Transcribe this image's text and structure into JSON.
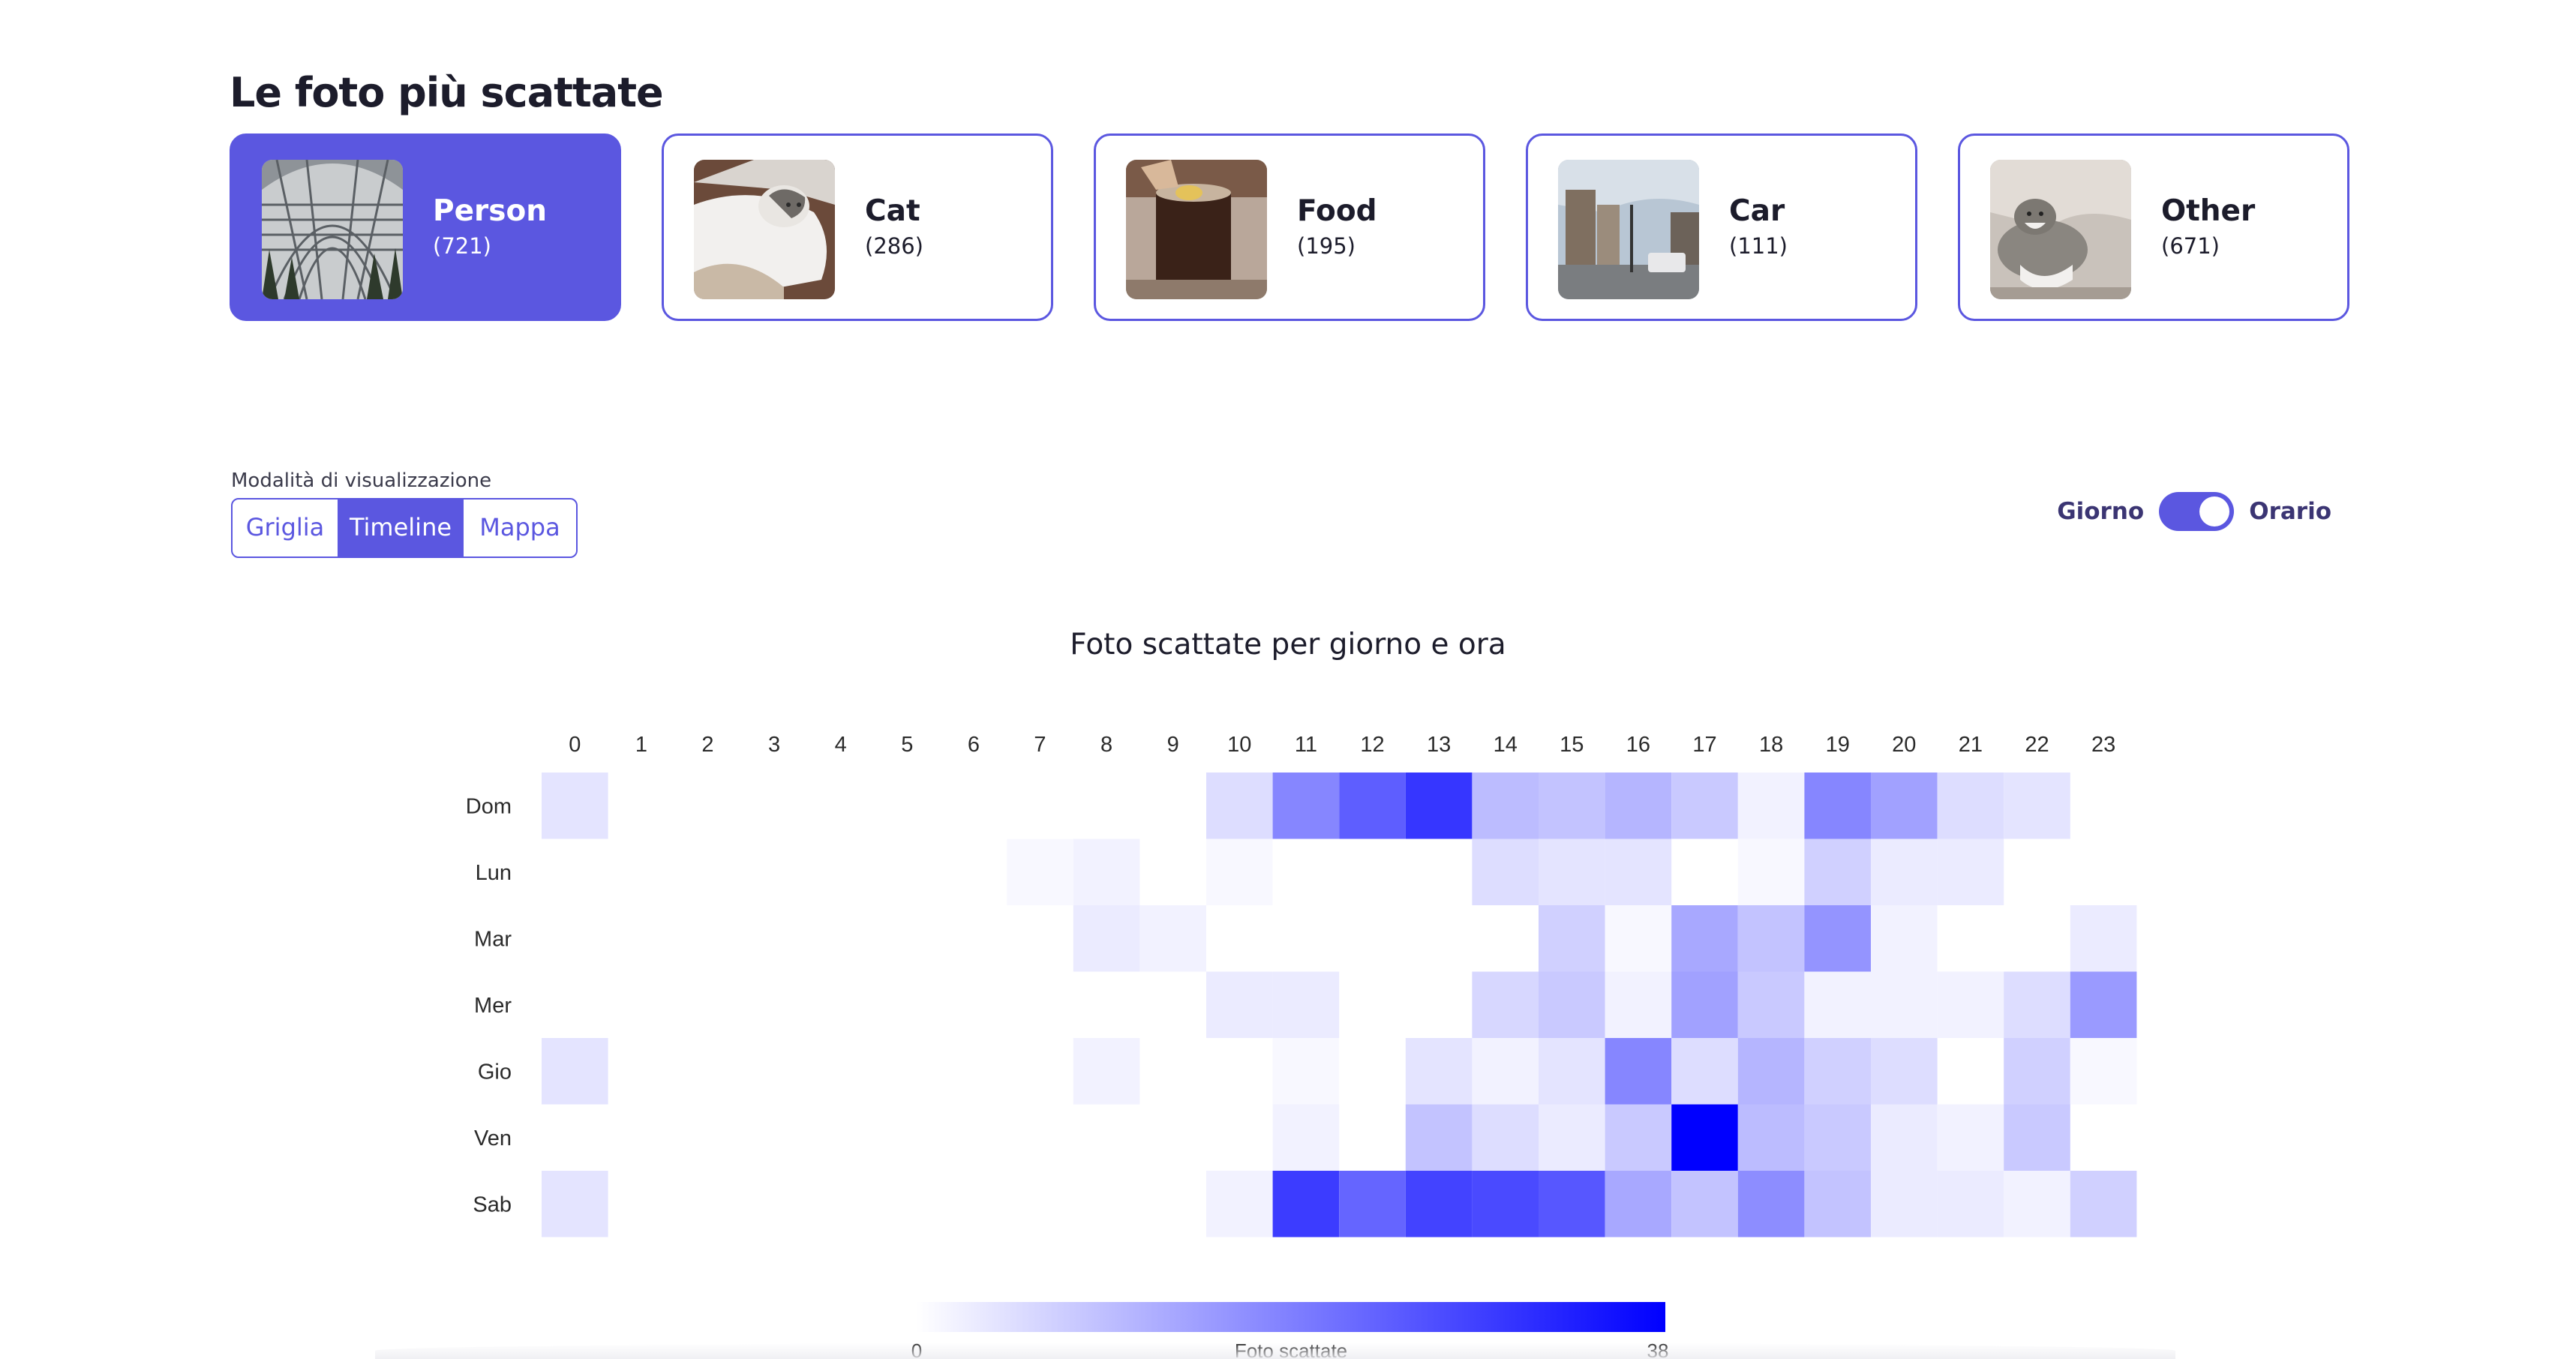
{
  "header": {
    "title": "Le foto più scattate"
  },
  "categories": [
    {
      "name": "Person",
      "count": "(721)",
      "active": true,
      "thumb": "glass-dome-photo"
    },
    {
      "name": "Cat",
      "count": "(286)",
      "active": false,
      "thumb": "cat-photo"
    },
    {
      "name": "Food",
      "count": "(195)",
      "active": false,
      "thumb": "drink-photo"
    },
    {
      "name": "Car",
      "count": "(111)",
      "active": false,
      "thumb": "street-photo"
    },
    {
      "name": "Other",
      "count": "(671)",
      "active": false,
      "thumb": "cat-sofa-photo"
    }
  ],
  "view_mode": {
    "label": "Modalità di visualizzazione",
    "options": [
      "Griglia",
      "Timeline",
      "Mappa"
    ],
    "selected": "Timeline"
  },
  "granularity_switch": {
    "left_label": "Giorno",
    "right_label": "Orario",
    "on": true
  },
  "colors": {
    "accent": "#5b57e0",
    "heat_max": "#0000ff"
  },
  "chart_data": {
    "type": "heatmap",
    "title": "Foto scattate per giorno e ora",
    "x": [
      "0",
      "1",
      "2",
      "3",
      "4",
      "5",
      "6",
      "7",
      "8",
      "9",
      "10",
      "11",
      "12",
      "13",
      "14",
      "15",
      "16",
      "17",
      "18",
      "19",
      "20",
      "21",
      "22",
      "23"
    ],
    "y": [
      "Dom",
      "Lun",
      "Mar",
      "Mer",
      "Gio",
      "Ven",
      "Sab"
    ],
    "z": [
      [
        4,
        0,
        0,
        0,
        0,
        0,
        0,
        0,
        0,
        0,
        5,
        18,
        24,
        30,
        10,
        9,
        11,
        8,
        2,
        18,
        14,
        5,
        4,
        0
      ],
      [
        0,
        0,
        0,
        0,
        0,
        0,
        0,
        1,
        2,
        0,
        1,
        0,
        0,
        0,
        5,
        4,
        4,
        0,
        1,
        7,
        3,
        3,
        0,
        0
      ],
      [
        0,
        0,
        0,
        0,
        0,
        0,
        0,
        0,
        3,
        2,
        0,
        0,
        0,
        0,
        0,
        7,
        1,
        13,
        9,
        16,
        2,
        0,
        0,
        3
      ],
      [
        0,
        0,
        0,
        0,
        0,
        0,
        0,
        0,
        0,
        0,
        3,
        3,
        0,
        0,
        6,
        8,
        2,
        14,
        8,
        2,
        2,
        2,
        5,
        15
      ],
      [
        4,
        0,
        0,
        0,
        0,
        0,
        0,
        0,
        2,
        0,
        0,
        1,
        0,
        4,
        2,
        4,
        18,
        5,
        11,
        7,
        5,
        0,
        7,
        1
      ],
      [
        0,
        0,
        0,
        0,
        0,
        0,
        0,
        0,
        0,
        0,
        0,
        2,
        0,
        9,
        5,
        3,
        8,
        38,
        10,
        8,
        3,
        2,
        8,
        0
      ],
      [
        4,
        0,
        0,
        0,
        0,
        0,
        0,
        0,
        0,
        0,
        2,
        29,
        23,
        28,
        27,
        25,
        13,
        9,
        17,
        9,
        3,
        3,
        2,
        7
      ]
    ],
    "zmin": 0,
    "zmax": 38,
    "colorbar": {
      "title": "Foto scattate",
      "min_label": "0",
      "max_label": "38",
      "orientation": "horizontal"
    }
  }
}
